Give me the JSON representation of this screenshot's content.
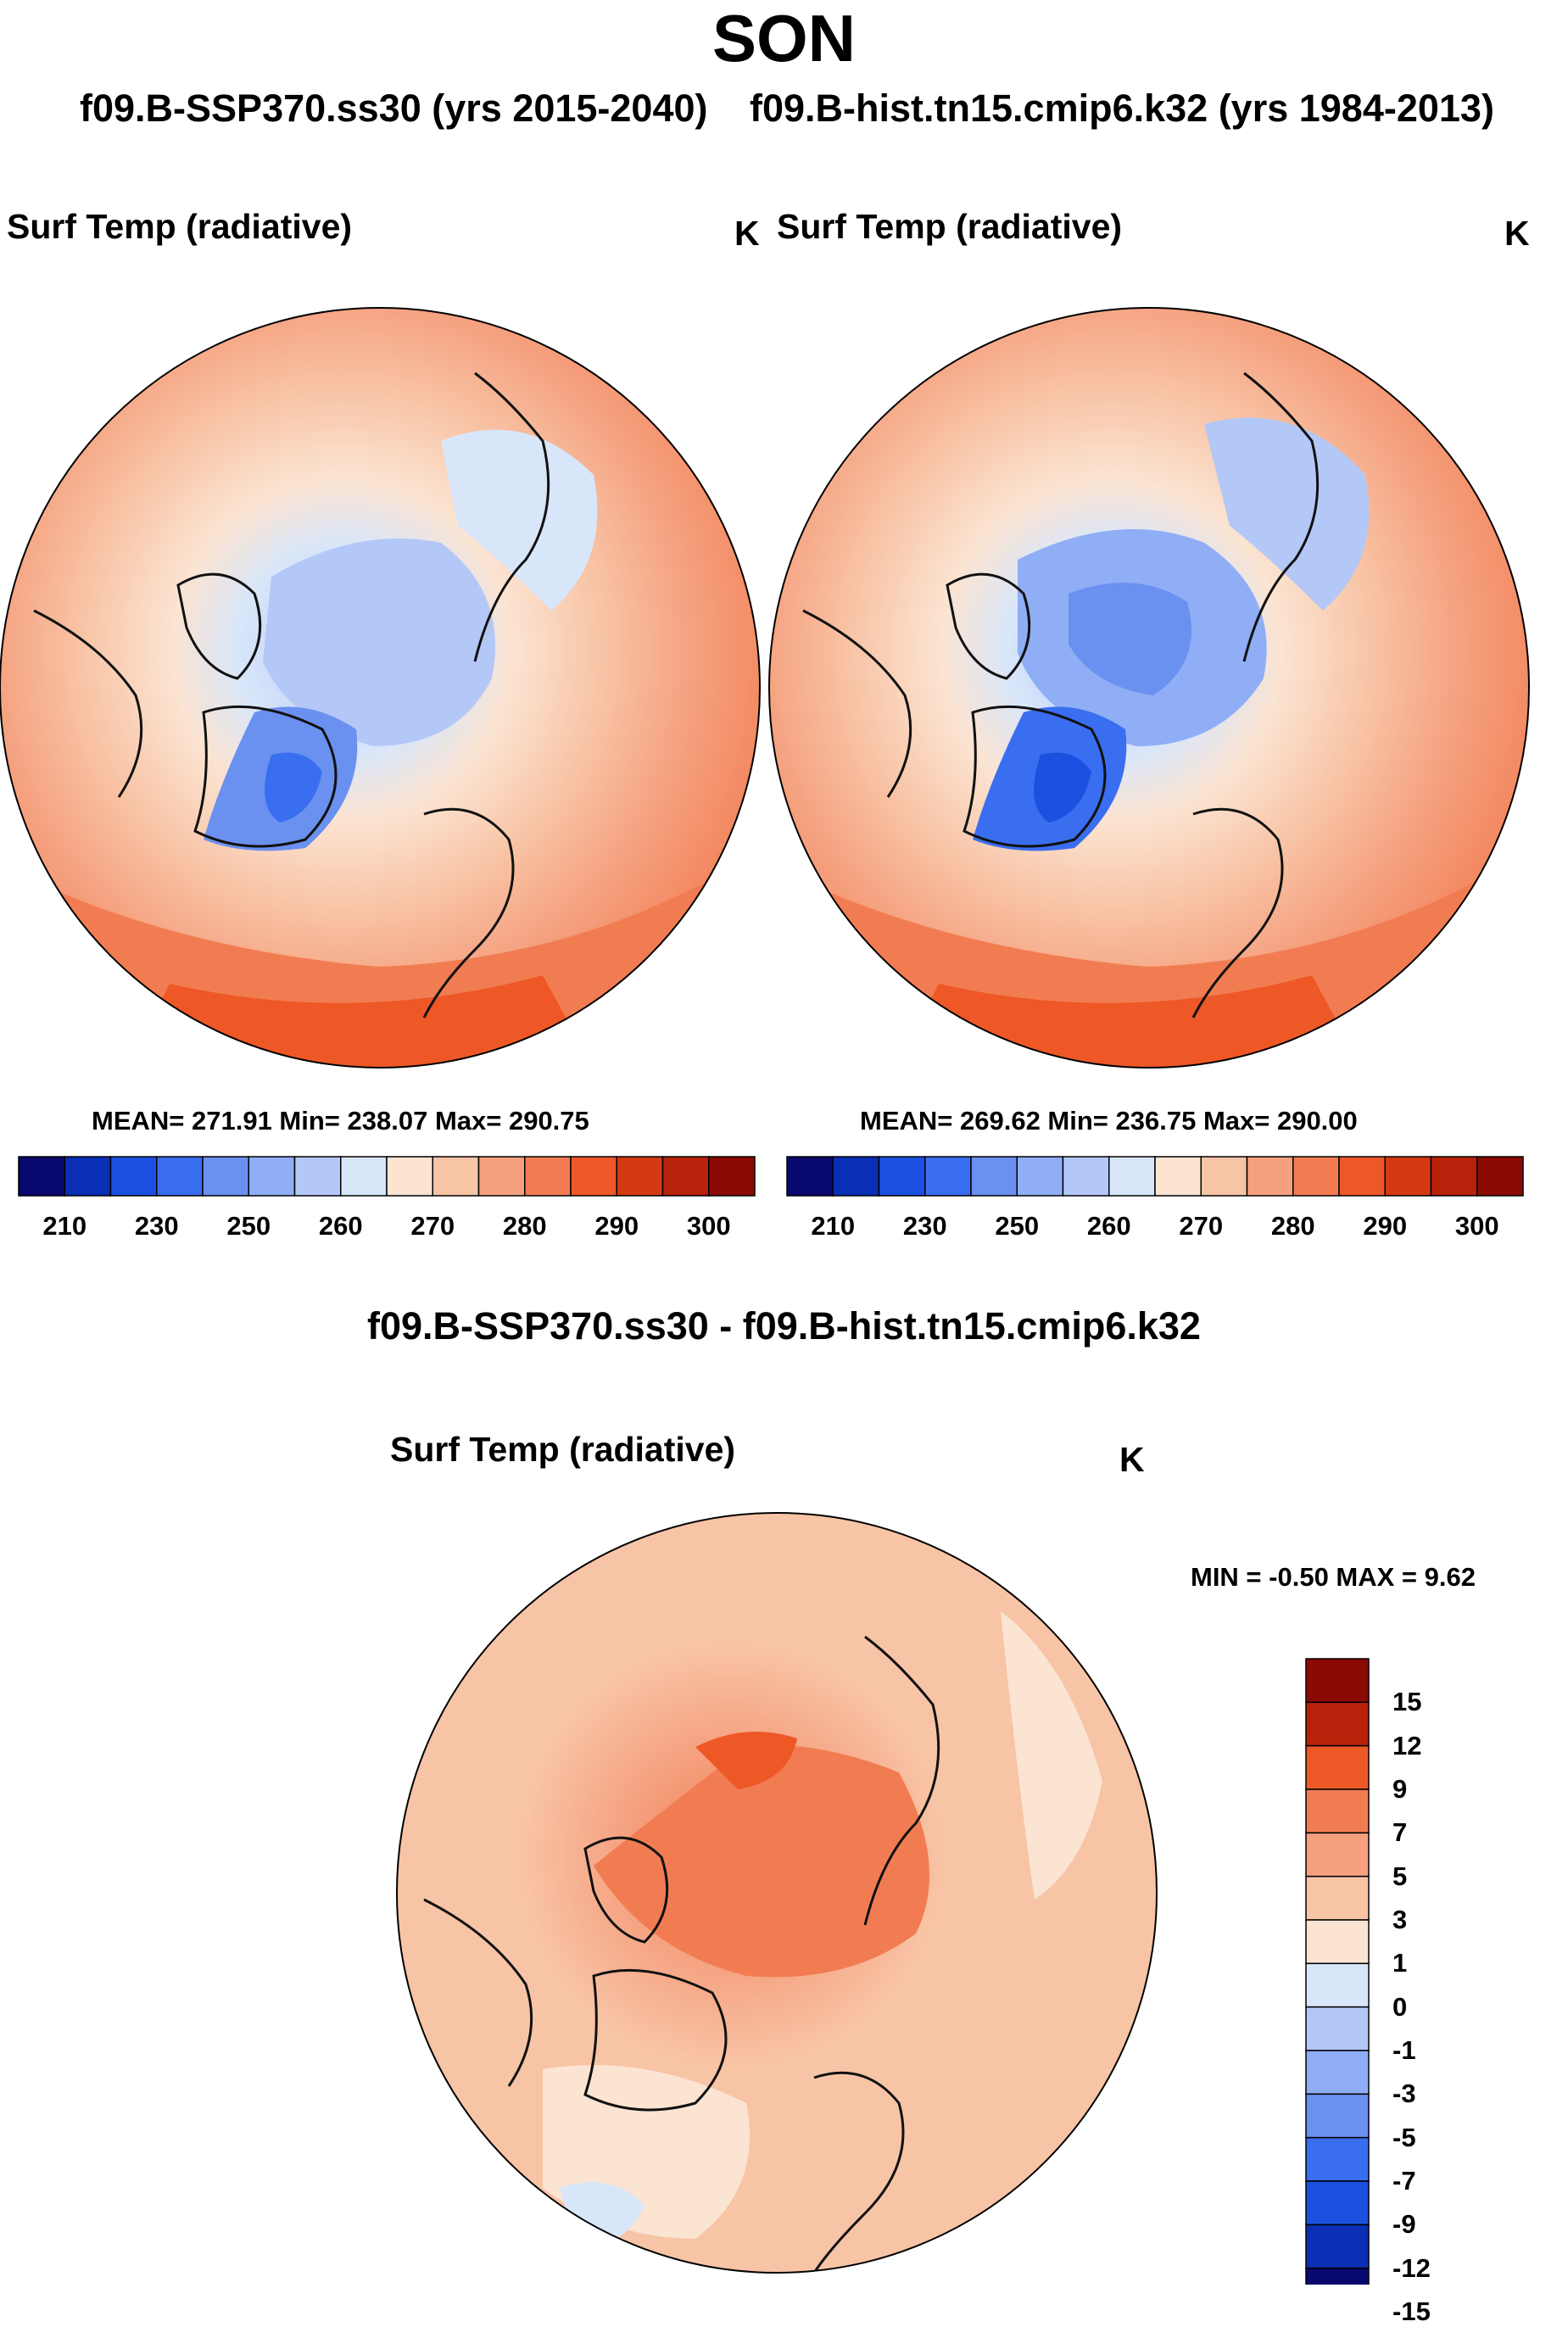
{
  "title": "SON",
  "runs": {
    "a": "f09.B-SSP370.ss30 (yrs 2015-2040)",
    "b": "f09.B-hist.tn15.cmip6.k32 (yrs 1984-2013)"
  },
  "panels": [
    {
      "variable": "Surf Temp (radiative)",
      "units": "K",
      "stats": "MEAN= 271.91  Min= 238.07  Max= 290.75"
    },
    {
      "variable": "Surf Temp (radiative)",
      "units": "K",
      "stats": "MEAN= 269.62  Min= 236.75  Max= 290.00"
    }
  ],
  "diff": {
    "title": "f09.B-SSP370.ss30 - f09.B-hist.tn15.cmip6.k32",
    "variable": "Surf Temp (radiative)",
    "units": "K",
    "stats": "MIN =  -0.50 MAX =   9.62"
  },
  "colors": {
    "abs_scale": [
      "#08086e",
      "#0a2fb4",
      "#1c50e0",
      "#3a6ef0",
      "#6a90f0",
      "#90aef5",
      "#b4c8f7",
      "#d8e6fa",
      "#fbe4d2",
      "#f8c4a6",
      "#f5a07e",
      "#f27c52",
      "#ee5826",
      "#d43a12",
      "#b8220a",
      "#8c0a04"
    ],
    "diff_scale": [
      "#08086e",
      "#0a2fb4",
      "#1c50e0",
      "#3a6ef0",
      "#6a90f0",
      "#90aef5",
      "#b4c8f7",
      "#d8e6fa",
      "#fbe4d2",
      "#f8c4a6",
      "#f5a07e",
      "#f27c52",
      "#ee5826",
      "#b8220a",
      "#8c0a04"
    ]
  },
  "chart_data": [
    {
      "type": "heatmap",
      "title": "Surf Temp (radiative)",
      "projection": "north-polar-stereographic",
      "units": "K",
      "mean": 271.91,
      "min": 238.07,
      "max": 290.75,
      "colorbar_ticks": [
        "210",
        "230",
        "250",
        "260",
        "270",
        "280",
        "290",
        "300"
      ]
    },
    {
      "type": "heatmap",
      "title": "Surf Temp (radiative)",
      "projection": "north-polar-stereographic",
      "units": "K",
      "mean": 269.62,
      "min": 236.75,
      "max": 290.0,
      "colorbar_ticks": [
        "210",
        "230",
        "250",
        "260",
        "270",
        "280",
        "290",
        "300"
      ]
    },
    {
      "type": "heatmap",
      "title": "Surf Temp (radiative)",
      "projection": "north-polar-stereographic",
      "units": "K",
      "min": -0.5,
      "max": 9.62,
      "colorbar_ticks": [
        "15",
        "12",
        "9",
        "7",
        "5",
        "3",
        "1",
        "0",
        "-1",
        "-3",
        "-5",
        "-7",
        "-9",
        "-12",
        "-15"
      ]
    }
  ]
}
